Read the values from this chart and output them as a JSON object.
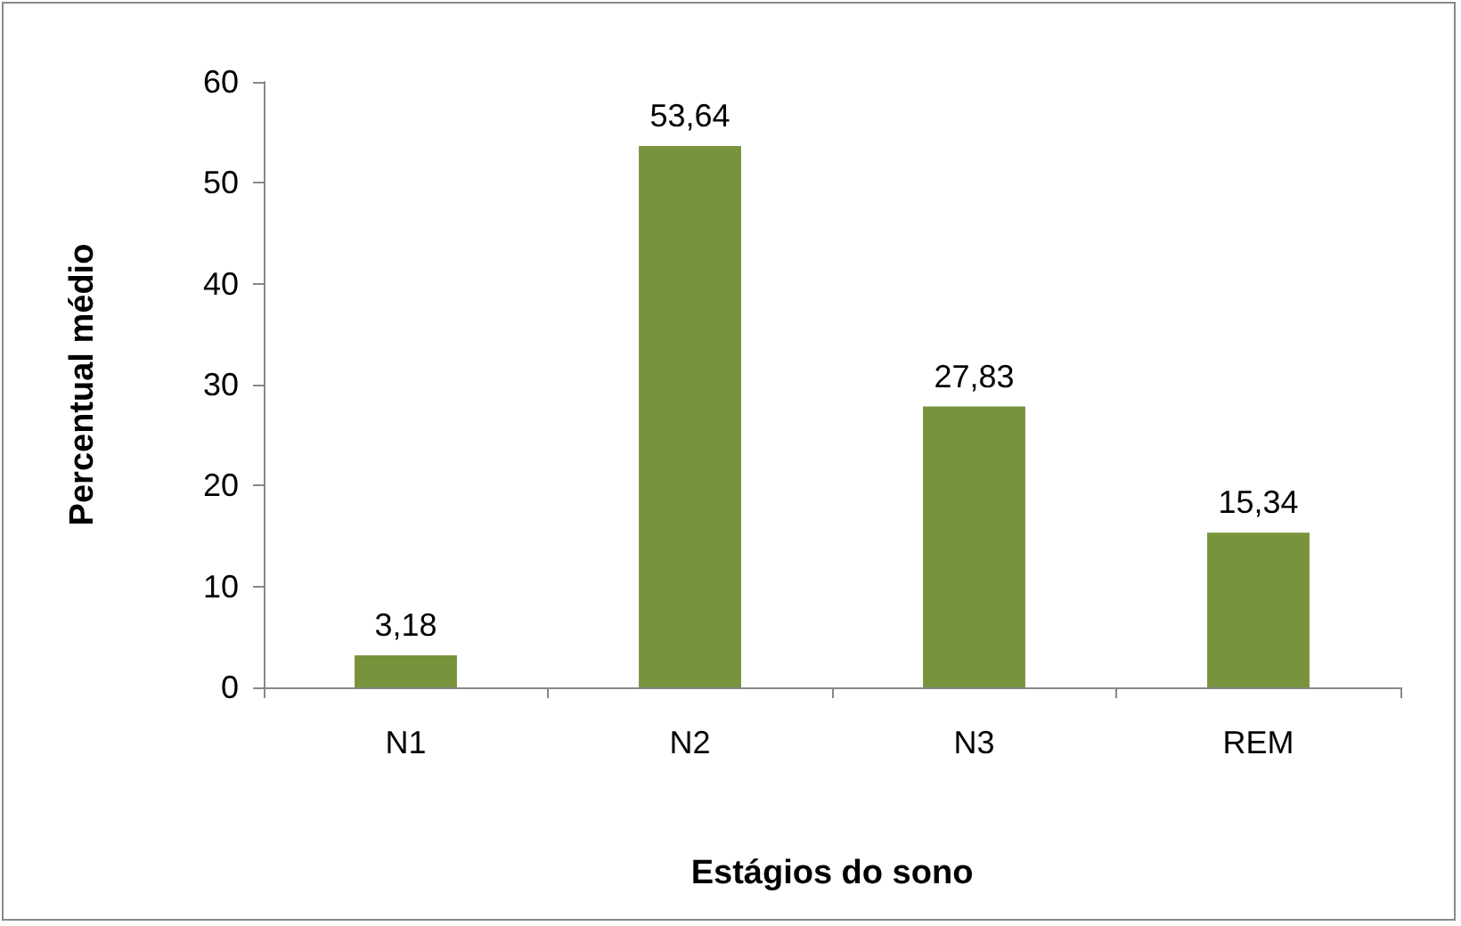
{
  "chart_data": {
    "type": "bar",
    "xlabel": "Estágios do sono",
    "ylabel": "Percentual médio",
    "categories": [
      "N1",
      "N2",
      "N3",
      "REM"
    ],
    "values": [
      3.18,
      53.64,
      27.83,
      15.34
    ],
    "value_labels": [
      "3,18",
      "53,64",
      "27,83",
      "15,34"
    ],
    "color": "#77933c",
    "ylim": [
      0,
      60
    ],
    "yticks": [
      0,
      10,
      20,
      30,
      40,
      50,
      60
    ],
    "grid": false
  }
}
